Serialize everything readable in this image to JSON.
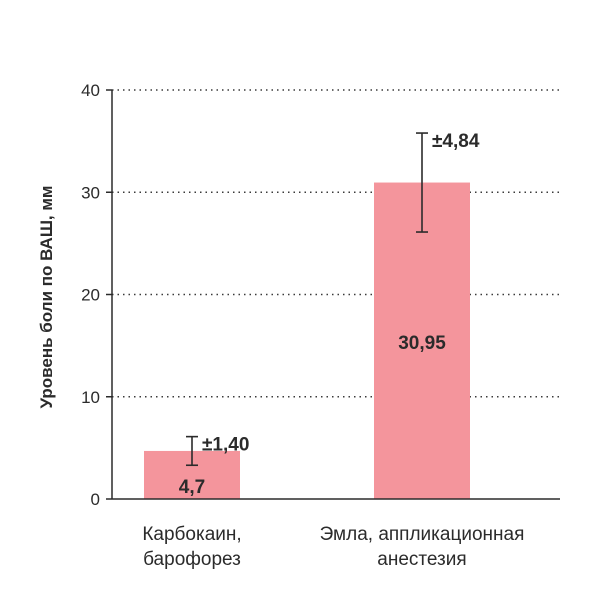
{
  "chart_data": {
    "type": "bar",
    "ylabel": "Уровень боли по ВАШ, мм",
    "ylim": [
      0,
      40
    ],
    "yticks": [
      0,
      10,
      20,
      30,
      40
    ],
    "grid": true,
    "categories": [
      [
        "Карбокаин,",
        "барофорез"
      ],
      [
        "Эмла, аппликационная",
        "анестезия"
      ]
    ],
    "values": [
      4.7,
      30.95
    ],
    "value_labels": [
      "4,7",
      "30,95"
    ],
    "errors": [
      1.4,
      4.84
    ],
    "error_labels": [
      "±1,40",
      "±4,84"
    ],
    "bar_color": "#f4959c",
    "axis_color": "#2b2b2b"
  }
}
